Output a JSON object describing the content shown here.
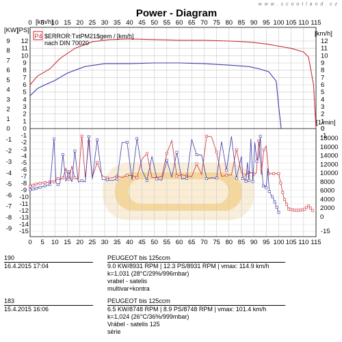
{
  "header": {
    "title": "Power - Diagram",
    "watermark": "w w w . s c o o t l a n d . c z"
  },
  "axes_labels": {
    "kw": "[KW]",
    "ps": "[PS]",
    "kmh": "[km/h]",
    "kmh_right": "[km/h]",
    "rpm": "[1/min]"
  },
  "legend": {
    "badge": "P4",
    "line1": "$ERROR:TxtPM21$gem / [km/h]",
    "line2": "nach DIN 70020"
  },
  "chart_data": {
    "type": "line",
    "title": "Power - Diagram",
    "x_axis": {
      "label": "[km/h]",
      "range": [
        0,
        115
      ],
      "ticks": [
        0,
        5,
        10,
        15,
        20,
        25,
        30,
        35,
        40,
        45,
        50,
        55,
        60,
        65,
        70,
        75,
        80,
        85,
        90,
        95,
        100,
        105,
        110,
        115
      ]
    },
    "kw_axis_top": {
      "label": "[KW]",
      "range": [
        0,
        9
      ],
      "ticks": [
        0,
        1,
        2,
        3,
        4,
        5,
        6,
        7,
        8,
        9
      ]
    },
    "ps_axis_top": {
      "label": "[PS]",
      "range": [
        0,
        12
      ],
      "ticks": [
        0,
        1,
        2,
        3,
        4,
        5,
        6,
        7,
        8,
        9,
        10,
        11,
        12
      ]
    },
    "kw_axis_bottom": {
      "range": [
        -9,
        -1
      ],
      "ticks": [
        -1,
        -2,
        -3,
        -4,
        -5,
        -6,
        -7,
        -8,
        -9
      ]
    },
    "ps_axis_bottom": {
      "range": [
        -15,
        -1
      ],
      "ticks": [
        -1,
        -2,
        -3,
        -4,
        -5,
        -6,
        -7,
        -8,
        -9,
        -10,
        -11,
        -12,
        -13,
        -14,
        -15
      ]
    },
    "rpm_axis": {
      "label": "[1/min]",
      "range": [
        0,
        18000
      ],
      "ticks": [
        0,
        2000,
        4000,
        6000,
        8000,
        10000,
        12000,
        14000,
        16000,
        18000
      ]
    },
    "grid": true,
    "series": [
      {
        "name": "190",
        "color": "#cc2a36",
        "power_ps": {
          "x": [
            0,
            3,
            6,
            8,
            12,
            18,
            25,
            32,
            40,
            50,
            60,
            70,
            80,
            86,
            90,
            95,
            100,
            105,
            110,
            112,
            114,
            115
          ],
          "y": [
            6,
            7.2,
            7.8,
            8.2,
            9.6,
            11.0,
            11.9,
            12.2,
            12.3,
            12.2,
            12.1,
            12.1,
            12.0,
            11.9,
            11.8,
            11.6,
            11.3,
            11.0,
            10.5,
            9.8,
            6,
            0
          ]
        },
        "rpm": {
          "x": [
            0,
            3,
            8,
            12,
            18,
            25,
            35,
            45,
            55,
            65,
            75,
            85,
            90,
            95,
            100,
            102,
            104,
            106,
            108,
            110,
            112,
            114
          ],
          "y": [
            7000,
            7600,
            8000,
            8600,
            8900,
            9000,
            9100,
            9200,
            9300,
            9400,
            9600,
            9700,
            9800,
            9900,
            9900,
            4500,
            1800,
            1500,
            1500,
            1600,
            2500,
            1200
          ]
        }
      },
      {
        "name": "183",
        "color": "#3a3aa8",
        "power_ps": {
          "x": [
            0,
            3,
            6,
            10,
            15,
            22,
            30,
            40,
            50,
            60,
            70,
            80,
            88,
            92,
            96,
            99,
            100,
            101
          ],
          "y": [
            4.5,
            5.5,
            6.0,
            6.6,
            7.6,
            8.5,
            8.9,
            8.9,
            9.0,
            9.0,
            8.9,
            8.7,
            8.5,
            8.2,
            7.8,
            6.5,
            3,
            0
          ]
        },
        "rpm": {
          "x": [
            0,
            3,
            8,
            12,
            18,
            25,
            35,
            45,
            55,
            65,
            75,
            85,
            88,
            92,
            95,
            98,
            100
          ],
          "y": [
            6200,
            6600,
            7400,
            7800,
            8200,
            8400,
            8500,
            8600,
            8700,
            8800,
            8700,
            8600,
            8400,
            8000,
            7000,
            4000,
            1000
          ]
        }
      }
    ]
  },
  "runs": [
    {
      "id": "190",
      "date": "16.4.2015  17:04",
      "model": "PEUGEOT bis    125ccm",
      "stats": "9.0 KW/8931 RPM  |  12.3 PS/8931 RPM  |  vmax: 114.9 km/h",
      "k": "k=1,031 (28°C/29%/996mbar)",
      "note1": "vrabel - satelis",
      "note2": "multivar+kontra"
    },
    {
      "id": "183",
      "date": "15.4.2015  16:06",
      "model": "PEUGEOT bis    125ccm",
      "stats": "6.5 KW/8748 RPM  |  8.9 PS/8748 RPM  |  vmax: 101.4 km/h",
      "k": "k=1,024 (26°C/36%/999mbar)",
      "note1": "Vrábel - satelis 125",
      "note2": "série"
    }
  ]
}
